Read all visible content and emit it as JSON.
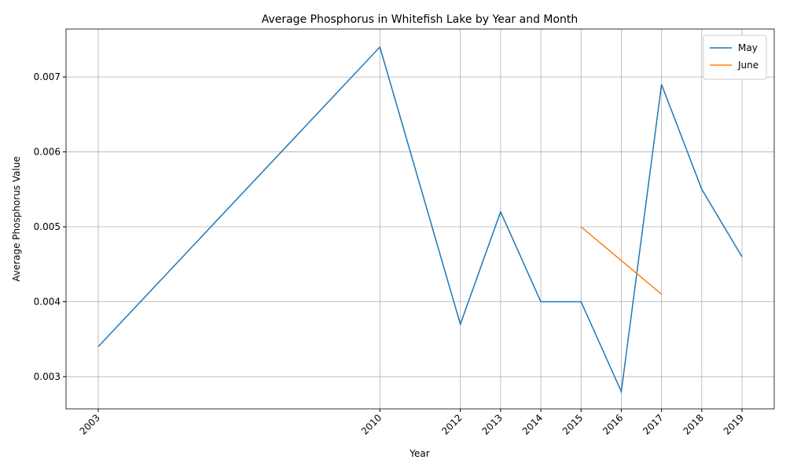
{
  "chart_data": {
    "type": "line",
    "title": "Average Phosphorus in Whitefish Lake by Year and Month",
    "x_label": "Year",
    "y_label": "Average Phosphorus Value",
    "series": [
      {
        "name": "May",
        "color": "#1f77b4",
        "x": [
          2003,
          2010,
          2012,
          2013,
          2014,
          2015,
          2016,
          2017,
          2018,
          2019
        ],
        "values": [
          0.0034,
          0.0074,
          0.0037,
          0.0052,
          0.004,
          0.004,
          0.0028,
          0.0069,
          0.0055,
          0.0046
        ]
      },
      {
        "name": "June",
        "color": "#ff7f0e",
        "x": [
          2015,
          2017
        ],
        "values": [
          0.005,
          0.0041
        ]
      }
    ],
    "xlim": [
      2002.2,
      2019.8
    ],
    "xticks": [
      2003,
      2010,
      2012,
      2013,
      2014,
      2015,
      2016,
      2017,
      2018,
      2019
    ],
    "ylim": [
      0.00257,
      0.00764
    ],
    "yticks": [
      0.003,
      0.004,
      0.005,
      0.006,
      0.007
    ],
    "grid": true,
    "legend": "upper-right"
  }
}
